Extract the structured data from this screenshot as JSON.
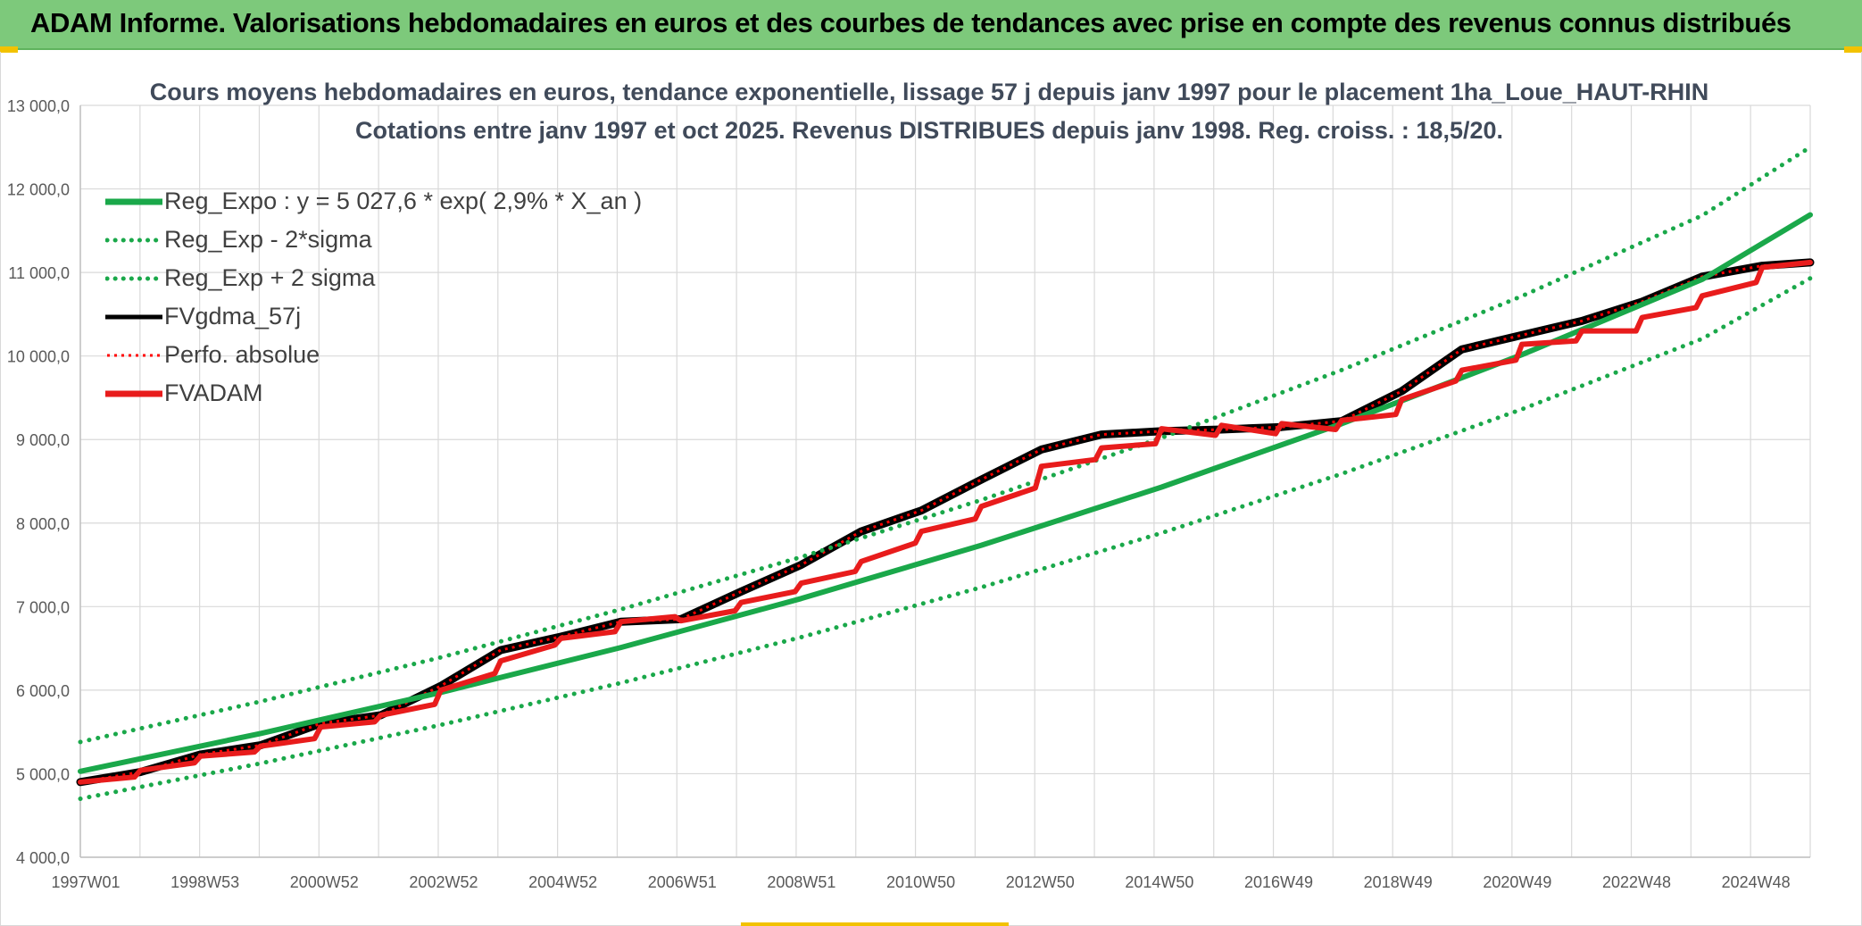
{
  "banner": {
    "title": "ADAM Informe. Valorisations hebdomadaires en euros et des courbes de tendances avec prise en compte des revenus connus distribués",
    "background": "#7dc97b"
  },
  "chart_data": {
    "type": "line",
    "title": "Cours moyens hebdomadaires en euros, tendance exponentielle, lissage 57 j depuis janv 1997 pour le placement 1ha_Loue_HAUT-RHIN",
    "subtitle": "Cotations entre janv 1997 et oct 2025. Revenus DISTRIBUES depuis janv 1998. Reg. croiss. : 18,5/20.",
    "xlabel": "",
    "ylabel": "",
    "x_tick_labels": [
      "1997W01",
      "1998W53",
      "2000W52",
      "2002W52",
      "2004W52",
      "2006W51",
      "2008W51",
      "2010W50",
      "2012W50",
      "2014W50",
      "2016W49",
      "2018W49",
      "2020W49",
      "2022W48",
      "2024W48"
    ],
    "xlim": [
      1997.0,
      2025.8
    ],
    "ylim": [
      4000,
      13000
    ],
    "y_tick_labels": [
      "4 000,0",
      "5 000,0",
      "6 000,0",
      "7 000,0",
      "8 000,0",
      "9 000,0",
      "10 000,0",
      "11 000,0",
      "12 000,0",
      "13 000,0"
    ],
    "grid": true,
    "legend_position": "top-left",
    "series": [
      {
        "name": "Reg_Expo : y = 5 027,6 * exp( 2,9% *  X_an )",
        "color": "#1aa84a",
        "style": "solid",
        "x": [
          1997.0,
          2000.0,
          2003.0,
          2006.0,
          2009.0,
          2012.0,
          2015.0,
          2018.0,
          2021.0,
          2024.0,
          2025.8
        ],
        "values": [
          5028,
          5481,
          5973,
          6511,
          7097,
          7735,
          8431,
          9189,
          10016,
          10917,
          11690
        ]
      },
      {
        "name": "Reg_Exp - 2*sigma",
        "color": "#1aa84a",
        "style": "dotted",
        "x": [
          1997.0,
          2000.0,
          2003.0,
          2006.0,
          2009.0,
          2012.0,
          2015.0,
          2018.0,
          2021.0,
          2024.0,
          2025.8
        ],
        "values": [
          4700,
          5123,
          5584,
          6086,
          6634,
          7231,
          7881,
          8590,
          9363,
          10206,
          10930
        ]
      },
      {
        "name": "Reg_Exp + 2 sigma",
        "color": "#1aa84a",
        "style": "dotted",
        "x": [
          1997.0,
          2000.0,
          2003.0,
          2006.0,
          2009.0,
          2012.0,
          2015.0,
          2018.0,
          2021.0,
          2024.0,
          2025.8
        ],
        "values": [
          5380,
          5864,
          6392,
          6967,
          7594,
          8277,
          9021,
          9832,
          10717,
          11681,
          12500
        ]
      },
      {
        "name": "FVgdma_57j",
        "color": "#000000",
        "style": "solid",
        "x": [
          1997.0,
          1998.0,
          1999.0,
          2000.0,
          2001.0,
          2002.0,
          2003.0,
          2004.0,
          2005.0,
          2006.0,
          2007.0,
          2008.0,
          2009.0,
          2010.0,
          2011.0,
          2012.0,
          2013.0,
          2014.0,
          2015.0,
          2016.0,
          2017.0,
          2018.0,
          2019.0,
          2020.0,
          2021.0,
          2022.0,
          2023.0,
          2024.0,
          2025.0,
          2025.8
        ],
        "values": [
          4900,
          5020,
          5230,
          5340,
          5600,
          5700,
          6050,
          6480,
          6640,
          6820,
          6850,
          7180,
          7500,
          7900,
          8150,
          8520,
          8880,
          9060,
          9100,
          9120,
          9150,
          9220,
          9580,
          10080,
          10250,
          10420,
          10650,
          10950,
          11080,
          11120
        ]
      },
      {
        "name": "Perfo. absolue",
        "color": "#ff0000",
        "style": "dotted",
        "x": [
          1997.0,
          1998.0,
          1999.0,
          2000.0,
          2001.0,
          2002.0,
          2003.0,
          2004.0,
          2005.0,
          2006.0,
          2007.0,
          2008.0,
          2009.0,
          2010.0,
          2011.0,
          2012.0,
          2013.0,
          2014.0,
          2015.0,
          2016.0,
          2017.0,
          2018.0,
          2019.0,
          2020.0,
          2021.0,
          2022.0,
          2023.0,
          2024.0,
          2025.0,
          2025.8
        ],
        "values": [
          4900,
          5020,
          5230,
          5340,
          5600,
          5700,
          6050,
          6480,
          6640,
          6820,
          6850,
          7180,
          7500,
          7900,
          8150,
          8520,
          8880,
          9060,
          9100,
          9120,
          9150,
          9220,
          9580,
          10080,
          10250,
          10420,
          10650,
          10950,
          11080,
          11120
        ]
      },
      {
        "name": "FVADAM",
        "color": "#e81c1c",
        "style": "solid",
        "x": [
          1997.0,
          1997.9,
          1998.0,
          1998.9,
          1999.0,
          1999.9,
          2000.0,
          2000.9,
          2001.0,
          2001.9,
          2002.0,
          2002.9,
          2003.0,
          2003.9,
          2004.0,
          2004.9,
          2005.0,
          2005.9,
          2006.0,
          2006.9,
          2007.0,
          2007.9,
          2008.0,
          2008.9,
          2009.0,
          2009.9,
          2010.0,
          2010.9,
          2011.0,
          2011.9,
          2012.0,
          2012.9,
          2013.0,
          2013.9,
          2014.0,
          2014.9,
          2015.0,
          2015.9,
          2016.0,
          2016.9,
          2017.0,
          2017.9,
          2018.0,
          2018.9,
          2019.0,
          2019.9,
          2020.0,
          2020.9,
          2021.0,
          2021.9,
          2022.0,
          2022.9,
          2023.0,
          2023.9,
          2024.0,
          2024.9,
          2025.0,
          2025.8
        ],
        "values": [
          4900,
          4960,
          5040,
          5130,
          5210,
          5260,
          5330,
          5420,
          5560,
          5620,
          5700,
          5830,
          6000,
          6200,
          6350,
          6540,
          6620,
          6700,
          6820,
          6880,
          6830,
          6950,
          7050,
          7180,
          7280,
          7420,
          7540,
          7760,
          7900,
          8050,
          8200,
          8420,
          8680,
          8760,
          8900,
          8950,
          9130,
          9050,
          9170,
          9070,
          9190,
          9120,
          9230,
          9300,
          9480,
          9700,
          9830,
          9950,
          10140,
          10180,
          10300,
          10300,
          10460,
          10580,
          10720,
          10880,
          11060,
          11120
        ]
      }
    ]
  },
  "legend": {
    "items": [
      {
        "label": "Reg_Expo : y = 5 027,6 * exp( 2,9% *  X_an )",
        "color": "#1aa84a",
        "style": "solid"
      },
      {
        "label": "Reg_Exp - 2*sigma",
        "color": "#1aa84a",
        "style": "dotted"
      },
      {
        "label": "Reg_Exp + 2 sigma",
        "color": "#1aa84a",
        "style": "dotted"
      },
      {
        "label": "FVgdma_57j",
        "color": "#000000",
        "style": "solid"
      },
      {
        "label": "Perfo. absolue",
        "color": "#ff0000",
        "style": "dotted"
      },
      {
        "label": "FVADAM",
        "color": "#e81c1c",
        "style": "solid"
      }
    ]
  }
}
